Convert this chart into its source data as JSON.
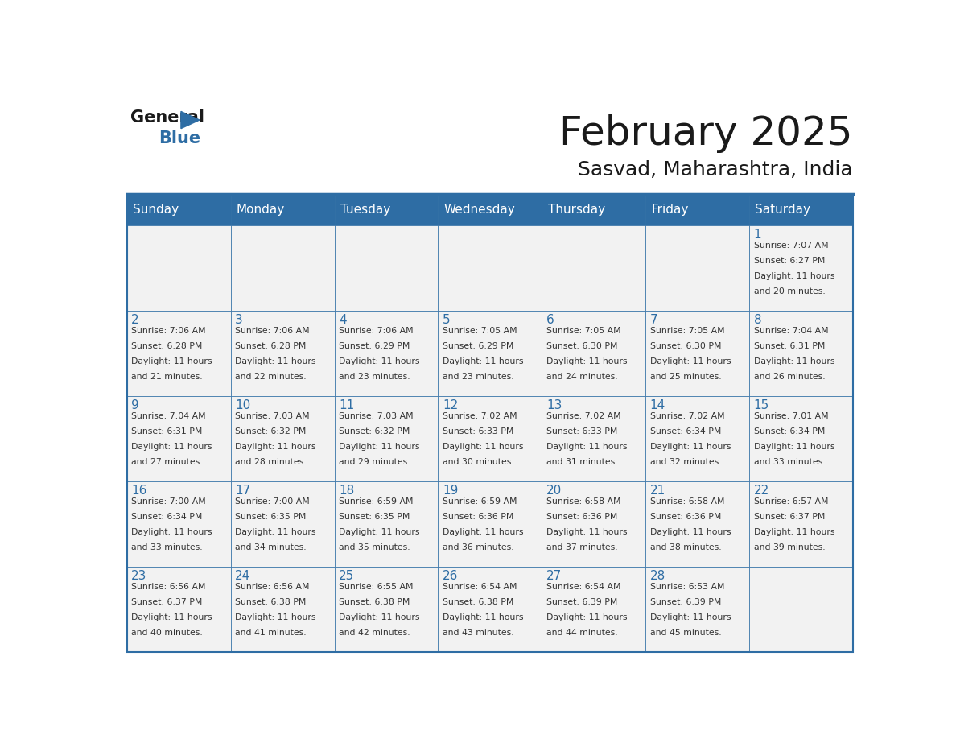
{
  "title": "February 2025",
  "subtitle": "Sasvad, Maharashtra, India",
  "header_bg_color": "#2E6DA4",
  "header_text_color": "#FFFFFF",
  "cell_bg_color": "#F2F2F2",
  "border_color": "#2E6DA4",
  "day_headers": [
    "Sunday",
    "Monday",
    "Tuesday",
    "Wednesday",
    "Thursday",
    "Friday",
    "Saturday"
  ],
  "title_color": "#1A1A1A",
  "subtitle_color": "#1A1A1A",
  "day_number_color": "#2E6DA4",
  "cell_text_color": "#333333",
  "days": [
    {
      "date": 1,
      "col": 6,
      "row": 0,
      "sunrise": "7:07 AM",
      "sunset": "6:27 PM",
      "daylight_hours": 11,
      "daylight_minutes": 20
    },
    {
      "date": 2,
      "col": 0,
      "row": 1,
      "sunrise": "7:06 AM",
      "sunset": "6:28 PM",
      "daylight_hours": 11,
      "daylight_minutes": 21
    },
    {
      "date": 3,
      "col": 1,
      "row": 1,
      "sunrise": "7:06 AM",
      "sunset": "6:28 PM",
      "daylight_hours": 11,
      "daylight_minutes": 22
    },
    {
      "date": 4,
      "col": 2,
      "row": 1,
      "sunrise": "7:06 AM",
      "sunset": "6:29 PM",
      "daylight_hours": 11,
      "daylight_minutes": 23
    },
    {
      "date": 5,
      "col": 3,
      "row": 1,
      "sunrise": "7:05 AM",
      "sunset": "6:29 PM",
      "daylight_hours": 11,
      "daylight_minutes": 23
    },
    {
      "date": 6,
      "col": 4,
      "row": 1,
      "sunrise": "7:05 AM",
      "sunset": "6:30 PM",
      "daylight_hours": 11,
      "daylight_minutes": 24
    },
    {
      "date": 7,
      "col": 5,
      "row": 1,
      "sunrise": "7:05 AM",
      "sunset": "6:30 PM",
      "daylight_hours": 11,
      "daylight_minutes": 25
    },
    {
      "date": 8,
      "col": 6,
      "row": 1,
      "sunrise": "7:04 AM",
      "sunset": "6:31 PM",
      "daylight_hours": 11,
      "daylight_minutes": 26
    },
    {
      "date": 9,
      "col": 0,
      "row": 2,
      "sunrise": "7:04 AM",
      "sunset": "6:31 PM",
      "daylight_hours": 11,
      "daylight_minutes": 27
    },
    {
      "date": 10,
      "col": 1,
      "row": 2,
      "sunrise": "7:03 AM",
      "sunset": "6:32 PM",
      "daylight_hours": 11,
      "daylight_minutes": 28
    },
    {
      "date": 11,
      "col": 2,
      "row": 2,
      "sunrise": "7:03 AM",
      "sunset": "6:32 PM",
      "daylight_hours": 11,
      "daylight_minutes": 29
    },
    {
      "date": 12,
      "col": 3,
      "row": 2,
      "sunrise": "7:02 AM",
      "sunset": "6:33 PM",
      "daylight_hours": 11,
      "daylight_minutes": 30
    },
    {
      "date": 13,
      "col": 4,
      "row": 2,
      "sunrise": "7:02 AM",
      "sunset": "6:33 PM",
      "daylight_hours": 11,
      "daylight_minutes": 31
    },
    {
      "date": 14,
      "col": 5,
      "row": 2,
      "sunrise": "7:02 AM",
      "sunset": "6:34 PM",
      "daylight_hours": 11,
      "daylight_minutes": 32
    },
    {
      "date": 15,
      "col": 6,
      "row": 2,
      "sunrise": "7:01 AM",
      "sunset": "6:34 PM",
      "daylight_hours": 11,
      "daylight_minutes": 33
    },
    {
      "date": 16,
      "col": 0,
      "row": 3,
      "sunrise": "7:00 AM",
      "sunset": "6:34 PM",
      "daylight_hours": 11,
      "daylight_minutes": 33
    },
    {
      "date": 17,
      "col": 1,
      "row": 3,
      "sunrise": "7:00 AM",
      "sunset": "6:35 PM",
      "daylight_hours": 11,
      "daylight_minutes": 34
    },
    {
      "date": 18,
      "col": 2,
      "row": 3,
      "sunrise": "6:59 AM",
      "sunset": "6:35 PM",
      "daylight_hours": 11,
      "daylight_minutes": 35
    },
    {
      "date": 19,
      "col": 3,
      "row": 3,
      "sunrise": "6:59 AM",
      "sunset": "6:36 PM",
      "daylight_hours": 11,
      "daylight_minutes": 36
    },
    {
      "date": 20,
      "col": 4,
      "row": 3,
      "sunrise": "6:58 AM",
      "sunset": "6:36 PM",
      "daylight_hours": 11,
      "daylight_minutes": 37
    },
    {
      "date": 21,
      "col": 5,
      "row": 3,
      "sunrise": "6:58 AM",
      "sunset": "6:36 PM",
      "daylight_hours": 11,
      "daylight_minutes": 38
    },
    {
      "date": 22,
      "col": 6,
      "row": 3,
      "sunrise": "6:57 AM",
      "sunset": "6:37 PM",
      "daylight_hours": 11,
      "daylight_minutes": 39
    },
    {
      "date": 23,
      "col": 0,
      "row": 4,
      "sunrise": "6:56 AM",
      "sunset": "6:37 PM",
      "daylight_hours": 11,
      "daylight_minutes": 40
    },
    {
      "date": 24,
      "col": 1,
      "row": 4,
      "sunrise": "6:56 AM",
      "sunset": "6:38 PM",
      "daylight_hours": 11,
      "daylight_minutes": 41
    },
    {
      "date": 25,
      "col": 2,
      "row": 4,
      "sunrise": "6:55 AM",
      "sunset": "6:38 PM",
      "daylight_hours": 11,
      "daylight_minutes": 42
    },
    {
      "date": 26,
      "col": 3,
      "row": 4,
      "sunrise": "6:54 AM",
      "sunset": "6:38 PM",
      "daylight_hours": 11,
      "daylight_minutes": 43
    },
    {
      "date": 27,
      "col": 4,
      "row": 4,
      "sunrise": "6:54 AM",
      "sunset": "6:39 PM",
      "daylight_hours": 11,
      "daylight_minutes": 44
    },
    {
      "date": 28,
      "col": 5,
      "row": 4,
      "sunrise": "6:53 AM",
      "sunset": "6:39 PM",
      "daylight_hours": 11,
      "daylight_minutes": 45
    }
  ]
}
